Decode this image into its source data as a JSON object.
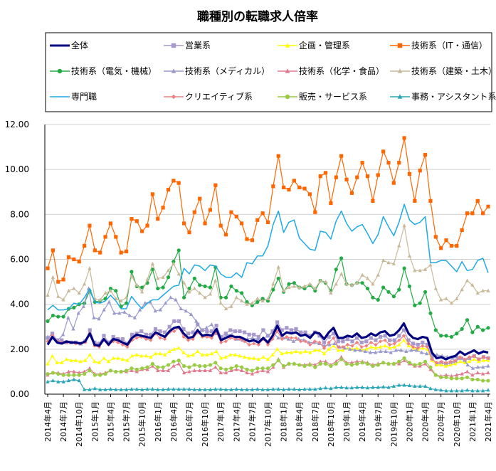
{
  "chart_data": {
    "type": "line",
    "title": "職種別の転職求人倍率",
    "xlabel": "",
    "ylabel": "",
    "ylim": [
      0,
      12
    ],
    "y_ticks": [
      "0.00",
      "2.00",
      "4.00",
      "6.00",
      "8.00",
      "10.00",
      "12.00"
    ],
    "legend_position": "top",
    "x_labels": [
      "2014年4月",
      "2014年7月",
      "2014年10月",
      "2015年1月",
      "2015年4月",
      "2015年7月",
      "2015年10月",
      "2016年1月",
      "2016年4月",
      "2016年7月",
      "2016年10月",
      "2017年1月",
      "2017年4月",
      "2017年7月",
      "2017年10月",
      "2018年1月",
      "2018年4月",
      "2018年7月",
      "2018年10月",
      "2019年1月",
      "2019年4月",
      "2019年7月",
      "2019年10月",
      "2020年1月",
      "2020年4月",
      "2020年7月",
      "2020年10月",
      "2021年1月",
      "2021年4月"
    ],
    "series": [
      {
        "name": "全体",
        "color": "#000080",
        "marker": "none",
        "width": 3.2,
        "values": [
          2.2,
          2.55,
          2.3,
          2.25,
          2.35,
          2.3,
          2.3,
          2.25,
          2.35,
          2.7,
          2.2,
          2.15,
          2.45,
          2.2,
          2.45,
          2.4,
          2.3,
          2.2,
          2.5,
          2.65,
          2.6,
          2.55,
          2.5,
          2.75,
          2.65,
          2.55,
          2.8,
          2.95,
          3.0,
          2.7,
          2.5,
          2.55,
          2.85,
          2.6,
          2.65,
          2.6,
          2.9,
          2.4,
          2.5,
          2.6,
          2.55,
          2.55,
          2.45,
          2.35,
          2.4,
          2.3,
          2.5,
          2.3,
          2.6,
          3.05,
          2.6,
          2.75,
          2.7,
          2.75,
          2.6,
          2.65,
          2.5,
          2.75,
          2.7,
          2.45,
          2.75,
          2.95,
          2.5,
          2.5,
          2.6,
          2.55,
          2.7,
          2.5,
          2.55,
          2.7,
          2.6,
          2.75,
          2.8,
          2.6,
          2.65,
          2.85,
          3.15,
          2.7,
          2.5,
          2.45,
          2.55,
          2.5,
          1.85,
          1.6,
          1.65,
          1.55,
          1.65,
          1.7,
          1.9,
          1.75,
          1.85,
          1.95,
          1.8,
          1.9,
          1.85
        ]
      },
      {
        "name": "営業系",
        "color": "#a899cc",
        "marker": "square",
        "width": 1.2,
        "values": [
          2.5,
          2.7,
          2.4,
          2.4,
          2.3,
          2.3,
          2.3,
          2.25,
          2.35,
          2.85,
          2.3,
          2.25,
          2.6,
          2.3,
          2.55,
          2.45,
          2.45,
          2.25,
          2.65,
          2.7,
          2.8,
          2.65,
          2.65,
          2.9,
          2.8,
          2.75,
          3.0,
          3.25,
          3.25,
          2.9,
          2.7,
          2.75,
          3.1,
          2.85,
          2.8,
          2.8,
          3.05,
          2.55,
          2.7,
          2.85,
          2.8,
          2.8,
          2.75,
          2.65,
          2.65,
          2.55,
          2.85,
          2.6,
          2.8,
          3.2,
          2.85,
          2.95,
          2.85,
          2.9,
          2.75,
          2.75,
          2.6,
          2.75,
          2.6,
          2.3,
          2.55,
          2.7,
          2.35,
          2.35,
          2.45,
          2.35,
          2.5,
          2.3,
          2.35,
          2.5,
          2.4,
          2.55,
          2.6,
          2.4,
          2.4,
          2.6,
          2.85,
          2.4,
          2.25,
          2.2,
          2.3,
          2.2,
          1.6,
          1.35,
          1.4,
          1.35,
          1.4,
          1.45,
          1.6,
          1.5,
          1.6,
          1.7,
          1.55,
          1.65,
          1.6
        ]
      },
      {
        "name": "企画・管理系",
        "color": "#ffff00",
        "marker": "triangle",
        "width": 1.2,
        "values": [
          1.35,
          1.7,
          1.4,
          1.4,
          1.55,
          1.5,
          1.5,
          1.45,
          1.5,
          1.75,
          1.45,
          1.4,
          1.6,
          1.45,
          1.6,
          1.6,
          1.55,
          1.5,
          1.7,
          1.75,
          1.7,
          1.7,
          1.65,
          1.8,
          1.8,
          1.75,
          1.9,
          2.0,
          2.05,
          1.85,
          1.7,
          1.75,
          1.9,
          1.75,
          1.75,
          1.8,
          1.9,
          1.6,
          1.65,
          1.75,
          1.75,
          1.7,
          1.65,
          1.6,
          1.6,
          1.55,
          1.65,
          1.55,
          1.75,
          2.0,
          1.8,
          1.85,
          1.85,
          1.9,
          1.85,
          1.9,
          1.85,
          1.95,
          1.95,
          1.8,
          2.0,
          2.15,
          1.95,
          1.95,
          2.05,
          2.0,
          2.05,
          1.95,
          2.0,
          2.1,
          2.05,
          2.1,
          2.15,
          2.05,
          2.1,
          2.2,
          2.4,
          2.15,
          2.05,
          2.0,
          2.05,
          2.0,
          1.5,
          1.3,
          1.3,
          1.25,
          1.3,
          1.35,
          1.45,
          1.4,
          1.45,
          1.55,
          1.45,
          1.5,
          1.5
        ]
      },
      {
        "name": "技術系（IT・通信）",
        "color": "#ff6600",
        "marker": "square",
        "width": 1.2,
        "values": [
          5.6,
          6.4,
          5.0,
          5.1,
          6.1,
          6.0,
          5.9,
          6.6,
          7.5,
          6.4,
          6.3,
          7.0,
          7.6,
          7.0,
          6.3,
          6.35,
          7.8,
          7.7,
          7.25,
          7.5,
          8.9,
          7.8,
          8.3,
          9.1,
          9.5,
          9.4,
          7.6,
          7.2,
          8.1,
          8.7,
          7.6,
          8.2,
          9.3,
          7.5,
          7.1,
          8.1,
          7.9,
          7.6,
          6.9,
          6.85,
          7.75,
          8.05,
          7.65,
          9.25,
          10.6,
          9.2,
          9.1,
          9.5,
          9.2,
          9.15,
          8.9,
          8.1,
          9.7,
          9.85,
          8.5,
          9.65,
          10.6,
          9.55,
          8.95,
          9.65,
          10.3,
          9.7,
          8.6,
          9.75,
          10.8,
          10.3,
          9.4,
          10.3,
          11.4,
          9.8,
          8.6,
          9.95,
          10.65,
          8.6,
          7.0,
          6.5,
          6.85,
          6.6,
          6.6,
          7.3,
          8.05,
          8.05,
          8.6,
          8.05,
          8.35
        ]
      },
      {
        "name": "技術系（電気・機械）",
        "color": "#22aa44",
        "marker": "circle",
        "width": 1.2,
        "values": [
          3.25,
          3.5,
          3.45,
          3.45,
          3.8,
          3.85,
          4.0,
          4.05,
          4.6,
          4.1,
          4.15,
          4.25,
          4.7,
          4.6,
          3.9,
          4.05,
          5.45,
          4.8,
          4.75,
          4.95,
          5.55,
          4.7,
          4.75,
          5.2,
          5.9,
          6.4,
          4.3,
          4.7,
          5.15,
          4.85,
          4.8,
          4.75,
          5.65,
          4.3,
          4.3,
          4.8,
          4.6,
          4.5,
          4.1,
          3.95,
          4.1,
          4.25,
          4.15,
          4.65,
          5.15,
          4.55,
          4.9,
          4.95,
          4.75,
          4.7,
          4.85,
          4.6,
          5.05,
          4.95,
          4.6,
          5.55,
          6.05,
          4.9,
          4.85,
          4.95,
          4.95,
          4.7,
          4.3,
          4.2,
          4.75,
          4.55,
          4.35,
          4.65,
          5.6,
          4.8,
          3.95,
          4.05,
          4.55,
          3.6,
          2.85,
          2.6,
          2.6,
          2.55,
          2.7,
          2.9,
          3.3,
          2.75,
          3.0,
          2.85,
          2.95
        ]
      },
      {
        "name": "技術系（メディカル）",
        "color": "#9999cc",
        "marker": "triangle",
        "width": 1.2,
        "values": [
          2.55,
          2.5,
          2.4,
          2.65,
          3.4,
          2.9,
          3.6,
          3.9,
          4.7,
          3.4,
          3.35,
          3.75,
          4.1,
          3.6,
          3.6,
          3.65,
          3.5,
          3.4,
          3.75,
          4.05,
          4.1,
          3.7,
          3.75,
          4.05,
          4.3,
          4.2,
          3.8,
          3.7,
          3.55,
          3.25,
          2.85,
          2.95,
          3.1,
          2.7,
          2.5,
          2.65,
          2.65,
          2.45,
          2.4,
          2.45,
          2.5,
          2.45,
          2.45,
          2.6,
          2.75,
          2.5,
          2.5,
          2.45,
          2.35,
          2.45,
          2.4,
          2.3,
          2.3,
          2.25,
          2.15,
          2.2,
          2.25,
          2.1,
          2.05,
          2.0,
          1.95,
          1.95,
          1.9,
          1.85,
          1.85,
          1.9,
          1.9,
          1.85,
          1.95,
          1.95,
          1.9,
          1.95,
          1.95,
          1.85,
          1.8,
          1.75,
          1.75,
          1.7,
          1.65,
          1.6,
          1.65,
          1.6,
          1.3,
          1.15,
          1.2,
          1.2,
          1.25
        ]
      },
      {
        "name": "技術系（化学・食品）",
        "color": "#e07a8e",
        "marker": "triangle",
        "width": 1.2,
        "values": [
          0.85,
          0.95,
          0.95,
          0.9,
          1.0,
          1.0,
          0.95,
          1.0,
          1.15,
          0.9,
          0.9,
          0.95,
          1.05,
          1.0,
          1.0,
          1.0,
          1.05,
          1.0,
          1.1,
          1.1,
          1.25,
          1.05,
          1.05,
          1.05,
          1.25,
          1.35,
          0.95,
          1.0,
          1.05,
          1.05,
          1.05,
          1.05,
          1.2,
          0.95,
          0.95,
          1.05,
          1.1,
          1.05,
          0.95,
          0.9,
          1.0,
          1.05,
          1.0,
          1.2,
          1.55,
          1.2,
          1.35,
          1.35,
          1.3,
          1.3,
          1.35,
          1.3,
          1.45,
          1.45,
          1.3,
          1.45,
          1.65,
          1.4,
          1.4,
          1.45,
          1.45,
          1.4,
          1.3,
          1.35,
          1.4,
          1.35,
          1.35,
          1.35,
          1.5,
          1.35,
          1.25,
          1.25,
          1.35,
          1.1,
          0.85,
          0.8,
          0.85,
          0.8,
          0.85,
          0.9,
          1.0,
          0.85,
          0.95,
          0.9,
          0.95
        ]
      },
      {
        "name": "技術系（建築・土木）",
        "color": "#c8b99a",
        "marker": "triangle",
        "width": 1.2,
        "values": [
          4.4,
          5.2,
          4.35,
          4.2,
          4.6,
          4.7,
          4.5,
          4.9,
          5.6,
          4.25,
          4.2,
          4.5,
          4.6,
          4.25,
          4.15,
          4.3,
          5.25,
          4.85,
          4.55,
          5.1,
          5.8,
          5.15,
          5.2,
          5.5,
          5.8,
          5.35,
          4.95,
          4.55,
          4.7,
          4.5,
          4.3,
          4.45,
          5.05,
          4.05,
          3.8,
          3.9,
          4.3,
          4.15,
          4.0,
          4.05,
          4.25,
          4.15,
          4.25,
          4.9,
          5.65,
          4.6,
          4.75,
          4.8,
          4.75,
          4.8,
          4.9,
          4.7,
          5.05,
          5.0,
          4.5,
          4.9,
          5.35,
          4.9,
          4.85,
          4.95,
          5.3,
          5.15,
          4.9,
          5.3,
          5.95,
          5.85,
          5.8,
          6.6,
          7.5,
          6.15,
          5.5,
          5.5,
          5.55,
          5.75,
          4.7,
          4.2,
          4.25,
          4.05,
          4.25,
          4.65,
          5.05,
          4.85,
          4.5,
          4.6,
          4.6
        ]
      },
      {
        "name": "専門職",
        "color": "#1fa9e5",
        "marker": "none",
        "width": 1.5,
        "values": [
          3.75,
          3.95,
          3.75,
          3.75,
          3.8,
          4.05,
          4.0,
          4.3,
          4.7,
          4.1,
          4.05,
          4.15,
          4.4,
          4.15,
          3.8,
          3.8,
          4.35,
          4.05,
          3.8,
          4.05,
          4.2,
          4.2,
          4.4,
          4.6,
          4.8,
          4.85,
          5.6,
          5.35,
          5.75,
          5.7,
          5.5,
          5.75,
          5.7,
          5.35,
          5.2,
          5.2,
          5.4,
          5.2,
          5.85,
          5.8,
          6.15,
          6.15,
          6.6,
          7.55,
          8.15,
          7.2,
          7.65,
          7.75,
          6.95,
          6.7,
          6.45,
          6.4,
          7.25,
          7.2,
          6.9,
          7.7,
          8.15,
          7.6,
          7.25,
          7.45,
          7.55,
          7.15,
          6.7,
          7.1,
          7.9,
          7.45,
          7.05,
          7.65,
          8.45,
          7.75,
          7.55,
          7.65,
          7.9,
          5.85,
          5.85,
          5.95,
          5.95,
          5.7,
          5.45,
          5.9,
          5.5,
          5.55,
          5.95,
          6.05,
          5.4
        ]
      },
      {
        "name": "クリエイティブ系",
        "color": "#f08080",
        "marker": "diamond",
        "width": 1.2,
        "values": [
          2.35,
          2.6,
          2.35,
          2.3,
          2.3,
          2.3,
          2.25,
          2.25,
          2.3,
          2.7,
          2.15,
          2.1,
          2.4,
          2.2,
          2.35,
          2.3,
          2.2,
          2.1,
          2.4,
          2.5,
          2.55,
          2.45,
          2.4,
          2.7,
          2.5,
          2.45,
          2.75,
          2.8,
          2.95,
          2.55,
          2.4,
          2.45,
          2.75,
          2.55,
          2.55,
          2.5,
          2.75,
          2.3,
          2.35,
          2.5,
          2.45,
          2.45,
          2.35,
          2.2,
          2.25,
          2.2,
          2.45,
          2.2,
          2.45,
          2.8,
          2.45,
          2.55,
          2.5,
          2.5,
          2.35,
          2.35,
          2.2,
          2.35,
          2.3,
          2.05,
          2.3,
          2.5,
          2.1,
          2.1,
          2.2,
          2.15,
          2.3,
          2.1,
          2.15,
          2.3,
          2.2,
          2.35,
          2.4,
          2.2,
          2.25,
          2.4,
          2.6,
          2.25,
          2.1,
          2.05,
          2.15,
          2.1,
          1.55,
          1.4,
          1.45,
          1.4,
          1.45,
          1.5,
          1.65,
          1.55,
          1.65,
          1.7,
          1.55,
          1.65,
          1.6
        ]
      },
      {
        "name": "販売・サービス系",
        "color": "#99cc44",
        "marker": "circle",
        "width": 1.2,
        "values": [
          0.9,
          0.95,
          0.9,
          0.85,
          0.85,
          0.85,
          0.85,
          0.9,
          1.05,
          0.85,
          0.85,
          0.9,
          1.05,
          1.0,
          1.0,
          1.05,
          1.15,
          1.1,
          1.15,
          1.2,
          1.35,
          1.2,
          1.2,
          1.3,
          1.45,
          1.5,
          1.25,
          1.2,
          1.3,
          1.25,
          1.25,
          1.3,
          1.4,
          1.15,
          1.1,
          1.15,
          1.25,
          1.2,
          1.1,
          1.05,
          1.15,
          1.15,
          1.15,
          1.3,
          1.5,
          1.25,
          1.35,
          1.35,
          1.3,
          1.25,
          1.3,
          1.2,
          1.35,
          1.35,
          1.25,
          1.35,
          1.55,
          1.35,
          1.3,
          1.35,
          1.4,
          1.35,
          1.25,
          1.3,
          1.4,
          1.35,
          1.35,
          1.45,
          1.6,
          1.4,
          1.3,
          1.35,
          1.45,
          1.2,
          0.85,
          0.75,
          0.75,
          0.7,
          0.7,
          0.7,
          0.75,
          0.65,
          0.65,
          0.6,
          0.6
        ]
      },
      {
        "name": "事務・アシスタント系",
        "color": "#2aa5b8",
        "marker": "triangle",
        "width": 1.2,
        "values": [
          0.55,
          0.6,
          0.55,
          0.55,
          0.6,
          0.65,
          0.6,
          0.2,
          0.2,
          0.25,
          0.2,
          0.2,
          0.22,
          0.2,
          0.2,
          0.2,
          0.22,
          0.22,
          0.2,
          0.22,
          0.22,
          0.2,
          0.2,
          0.22,
          0.22,
          0.22,
          0.22,
          0.22,
          0.2,
          0.2,
          0.2,
          0.2,
          0.22,
          0.22,
          0.2,
          0.2,
          0.22,
          0.2,
          0.2,
          0.2,
          0.22,
          0.2,
          0.2,
          0.22,
          0.22,
          0.2,
          0.22,
          0.22,
          0.2,
          0.22,
          0.22,
          0.22,
          0.25,
          0.28,
          0.25,
          0.3,
          0.3,
          0.28,
          0.28,
          0.3,
          0.3,
          0.28,
          0.3,
          0.3,
          0.32,
          0.3,
          0.35,
          0.4,
          0.4,
          0.38,
          0.35,
          0.35,
          0.35,
          0.25,
          0.2,
          0.18,
          0.15,
          0.15,
          0.15,
          0.15,
          0.18,
          0.15,
          0.15,
          0.15,
          0.18
        ]
      }
    ]
  }
}
